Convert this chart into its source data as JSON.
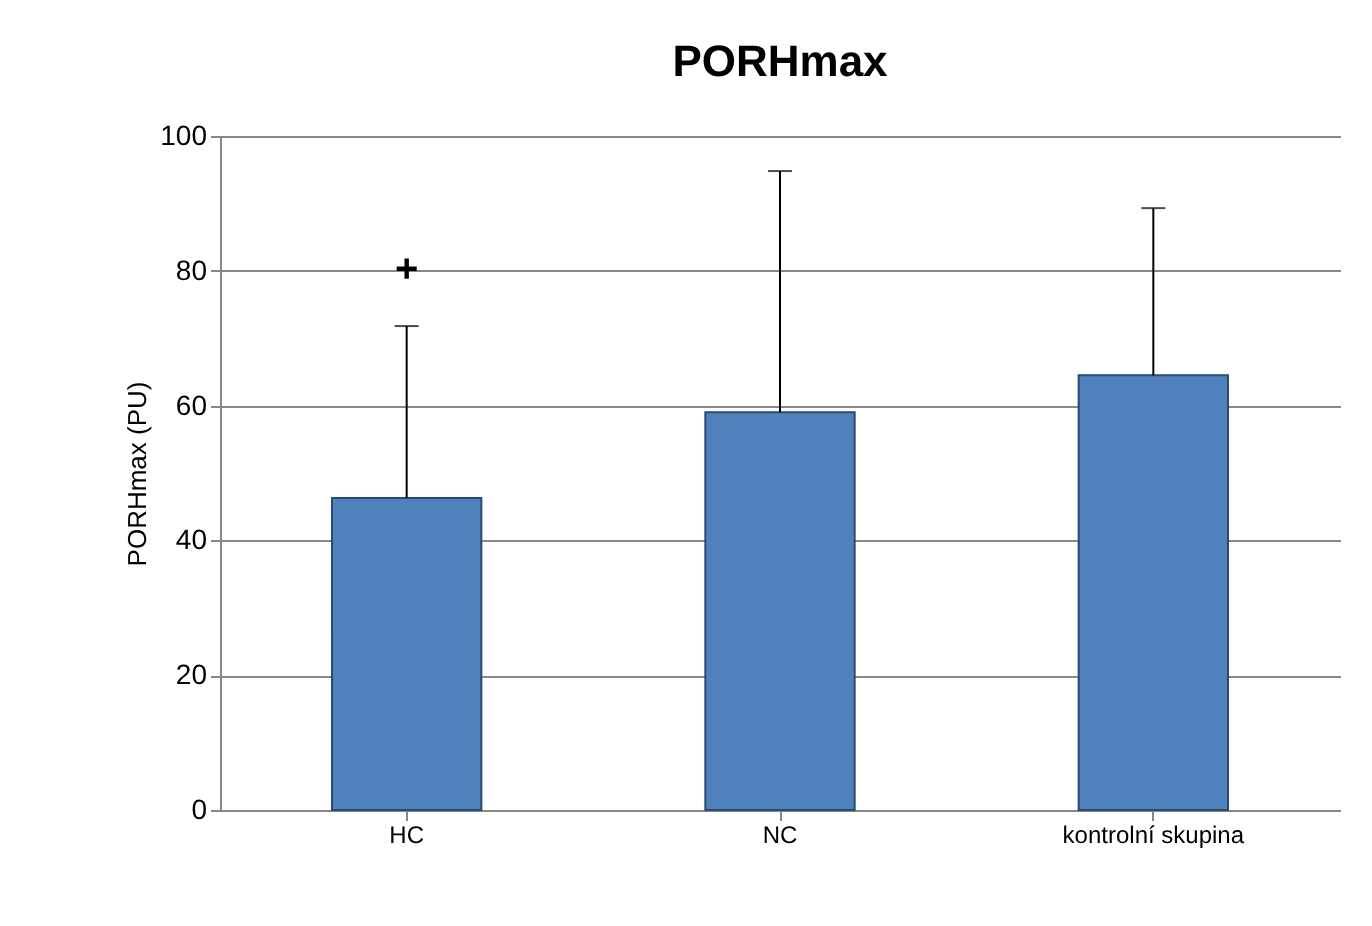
{
  "chart_data": {
    "type": "bar",
    "title": "PORHmax",
    "ylabel": "PORHmax (PU)",
    "categories": [
      "HC",
      "NC",
      "kontrolní skupina"
    ],
    "values": [
      46.3,
      59.0,
      64.5
    ],
    "color": "#4f81bd",
    "errors": [
      [
        46.3,
        71.8
      ],
      [
        59.0,
        94.8
      ],
      [
        64.5,
        89.3
      ]
    ],
    "annotations": [
      "+"
    ],
    "ylim": [
      0,
      100
    ],
    "yticks": [
      0,
      20,
      40,
      60,
      80,
      100
    ],
    "grid": "y"
  }
}
